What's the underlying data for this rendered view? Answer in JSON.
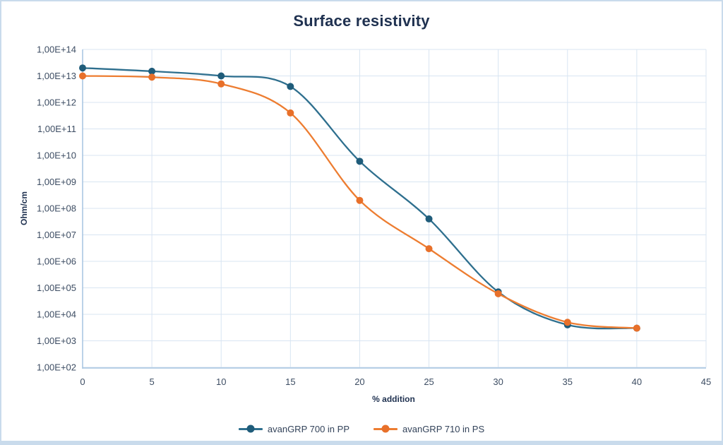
{
  "chart_data": {
    "type": "line",
    "title": "Surface resistivity",
    "xlabel": "% addition",
    "ylabel": "Ohm/cm",
    "x_axis": {
      "min": 0,
      "max": 45,
      "ticks": [
        0,
        5,
        10,
        15,
        20,
        25,
        30,
        35,
        40,
        45
      ]
    },
    "y_axis": {
      "scale": "log",
      "min_exponent": 2,
      "max_exponent": 14,
      "tick_labels": [
        "1,00E+14",
        "1,00E+13",
        "1,00E+12",
        "1,00E+11",
        "1,00E+10",
        "1,00E+09",
        "1,00E+08",
        "1,00E+07",
        "1,00E+06",
        "1,00E+05",
        "1,00E+04",
        "1,00E+03",
        "1,00E+02"
      ]
    },
    "grid": true,
    "legend_position": "bottom-center",
    "series": [
      {
        "name": "avanGRP 700 in PP",
        "line_color": "#2E6F8E",
        "marker_color": "#1F5C7A",
        "x": [
          0,
          5,
          10,
          15,
          20,
          25,
          30,
          35,
          40
        ],
        "values": [
          20000000000000.0,
          15000000000000.0,
          10000000000000.0,
          4000000000000.0,
          6000000000.0,
          40000000.0,
          70000.0,
          4000.0,
          3000.0
        ]
      },
      {
        "name": "avanGRP 710 in PS",
        "line_color": "#ED7D31",
        "marker_color": "#E8702A",
        "x": [
          0,
          5,
          10,
          15,
          20,
          25,
          30,
          35,
          40
        ],
        "values": [
          10000000000000.0,
          9000000000000.0,
          5000000000000.0,
          400000000000.0,
          200000000.0,
          3000000.0,
          60000.0,
          5000.0,
          3000.0
        ]
      }
    ]
  },
  "colors": {
    "background": "#FFFFFF",
    "border": "#C9DBEC",
    "gridline": "#D8E5F2",
    "axis_line": "#A5C4E0",
    "title_text": "#1F3150",
    "tick_text": "#3D4D63",
    "legend_text": "#33435A"
  }
}
